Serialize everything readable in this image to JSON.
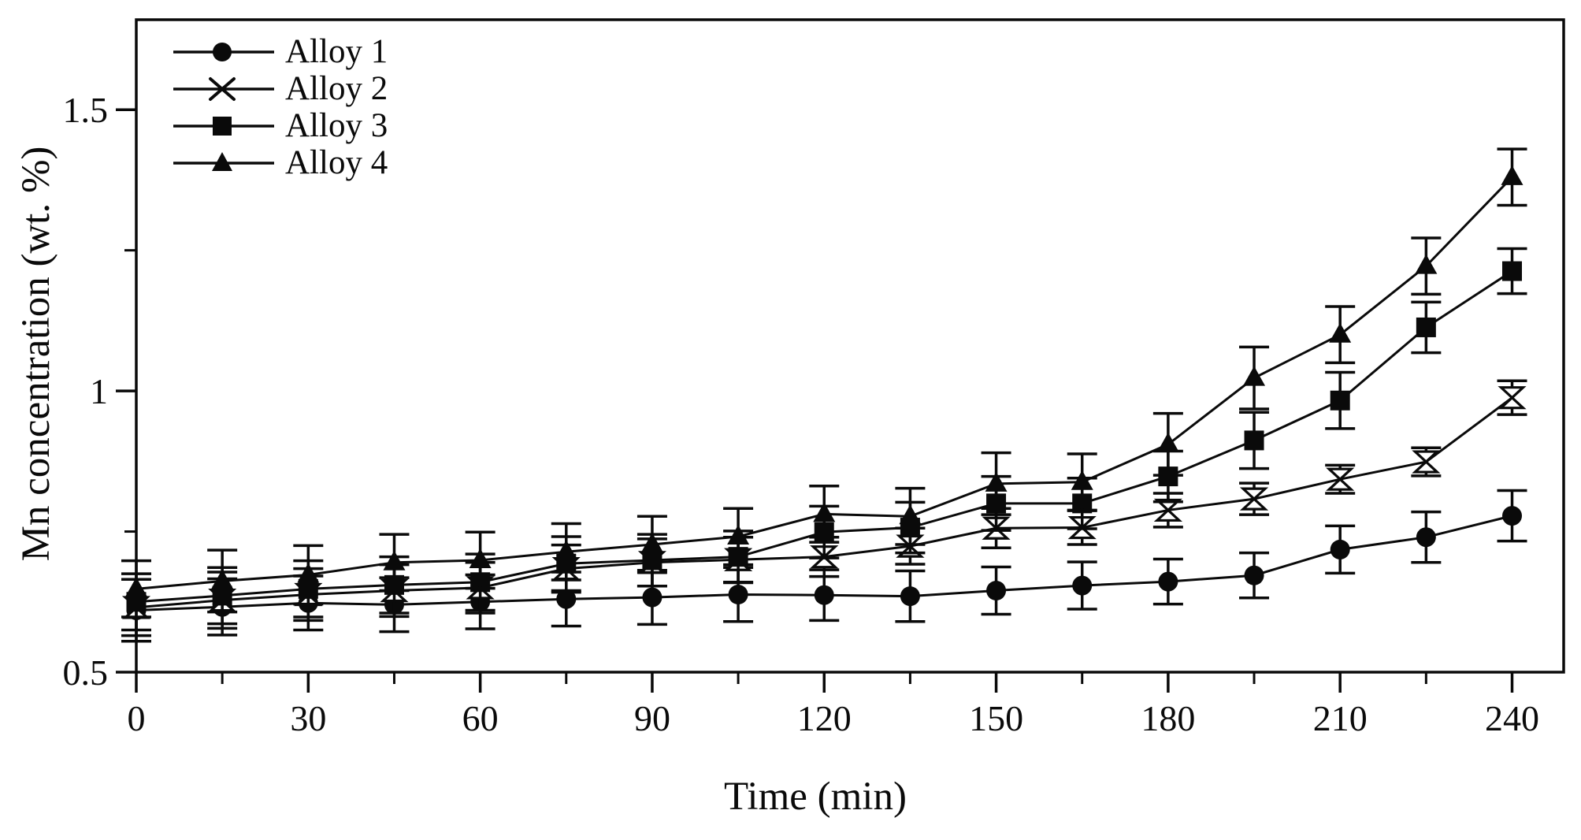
{
  "figure": {
    "background_color": "#ffffff",
    "ink_color": "#0a0a0a"
  },
  "chart_data": {
    "type": "line",
    "title": "",
    "xlabel": "Time (min)",
    "ylabel": "Mn concentration (wt. %)",
    "xlim": [
      0,
      249
    ],
    "ylim": [
      0.5,
      1.66
    ],
    "grid": false,
    "legend_position": "top-left",
    "x_ticks_major": [
      0,
      30,
      60,
      90,
      120,
      150,
      180,
      210,
      240
    ],
    "x_tick_labels": [
      "0",
      "30",
      "60",
      "90",
      "120",
      "150",
      "180",
      "210",
      "240"
    ],
    "x_ticks_minor": [
      15,
      45,
      75,
      105,
      135,
      165,
      195,
      225
    ],
    "y_ticks_major": [
      0.5,
      1.0,
      1.5
    ],
    "y_tick_labels": [
      "0.5",
      "1",
      "1.5"
    ],
    "y_ticks_minor": [
      0.75,
      1.25
    ],
    "x": [
      0,
      15,
      30,
      45,
      60,
      75,
      90,
      105,
      120,
      135,
      150,
      165,
      180,
      195,
      210,
      225,
      240
    ],
    "series": [
      {
        "name": "Alloy 1",
        "marker": "circle",
        "values": [
          0.61,
          0.616,
          0.623,
          0.62,
          0.625,
          0.63,
          0.633,
          0.638,
          0.637,
          0.635,
          0.645,
          0.654,
          0.661,
          0.672,
          0.718,
          0.74,
          0.778
        ],
        "errors": [
          0.055,
          0.05,
          0.048,
          0.048,
          0.048,
          0.048,
          0.048,
          0.048,
          0.045,
          0.045,
          0.042,
          0.042,
          0.04,
          0.04,
          0.042,
          0.045,
          0.045
        ]
      },
      {
        "name": "Alloy 2",
        "marker": "x",
        "values": [
          0.615,
          0.628,
          0.638,
          0.645,
          0.65,
          0.684,
          0.695,
          0.7,
          0.705,
          0.724,
          0.756,
          0.757,
          0.788,
          0.808,
          0.843,
          0.874,
          0.988
        ],
        "errors": [
          0.05,
          0.05,
          0.046,
          0.046,
          0.045,
          0.042,
          0.042,
          0.04,
          0.035,
          0.032,
          0.035,
          0.03,
          0.03,
          0.028,
          0.025,
          0.025,
          0.03
        ]
      },
      {
        "name": "Alloy 3",
        "marker": "square",
        "values": [
          0.625,
          0.636,
          0.648,
          0.655,
          0.66,
          0.693,
          0.699,
          0.705,
          0.749,
          0.757,
          0.8,
          0.8,
          0.848,
          0.912,
          0.983,
          1.113,
          1.213
        ],
        "errors": [
          0.05,
          0.05,
          0.05,
          0.05,
          0.05,
          0.048,
          0.046,
          0.046,
          0.046,
          0.045,
          0.048,
          0.045,
          0.045,
          0.05,
          0.05,
          0.045,
          0.04
        ]
      },
      {
        "name": "Alloy 4",
        "marker": "triangle",
        "values": [
          0.648,
          0.662,
          0.673,
          0.695,
          0.699,
          0.714,
          0.727,
          0.741,
          0.781,
          0.777,
          0.835,
          0.838,
          0.905,
          1.023,
          1.1,
          1.222,
          1.38
        ],
        "errors": [
          0.05,
          0.055,
          0.052,
          0.05,
          0.05,
          0.05,
          0.05,
          0.05,
          0.05,
          0.05,
          0.055,
          0.05,
          0.055,
          0.055,
          0.05,
          0.05,
          0.05
        ]
      }
    ]
  }
}
